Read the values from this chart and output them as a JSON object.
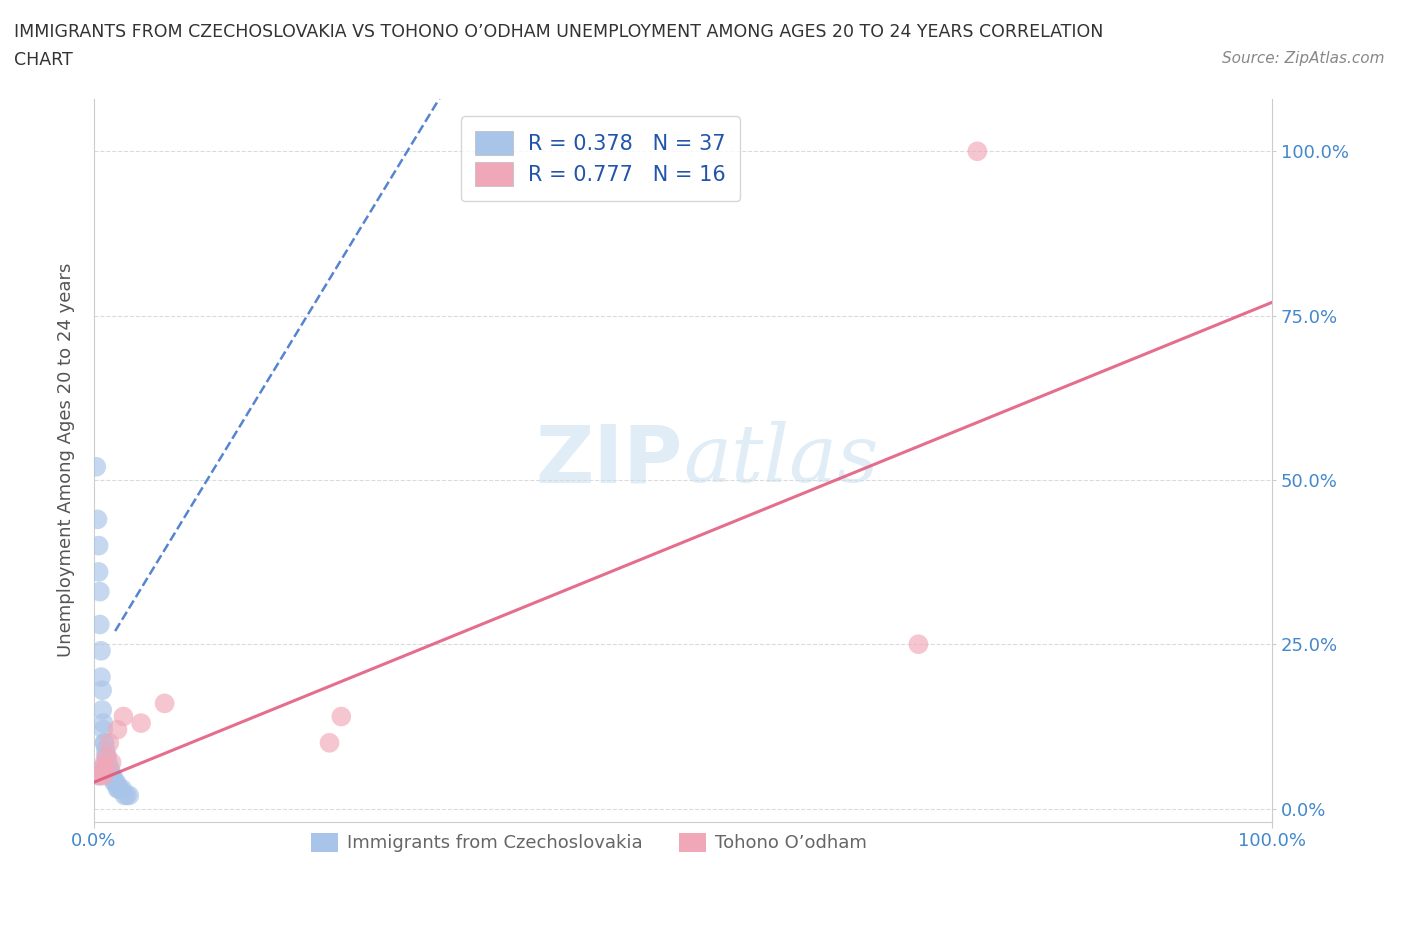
{
  "title_line1": "IMMIGRANTS FROM CZECHOSLOVAKIA VS TOHONO O’ODHAM UNEMPLOYMENT AMONG AGES 20 TO 24 YEARS CORRELATION",
  "title_line2": "CHART",
  "source_text": "Source: ZipAtlas.com",
  "ylabel": "Unemployment Among Ages 20 to 24 years",
  "r_blue": 0.378,
  "n_blue": 37,
  "r_pink": 0.777,
  "n_pink": 16,
  "blue_color": "#a8c4e8",
  "pink_color": "#f0a8b8",
  "blue_line_color": "#4477cc",
  "pink_line_color": "#e05578",
  "blue_x": [
    0.002,
    0.003,
    0.004,
    0.004,
    0.005,
    0.005,
    0.006,
    0.006,
    0.007,
    0.007,
    0.008,
    0.008,
    0.009,
    0.009,
    0.01,
    0.01,
    0.011,
    0.011,
    0.012,
    0.012,
    0.013,
    0.014,
    0.015,
    0.015,
    0.016,
    0.017,
    0.018,
    0.019,
    0.02,
    0.021,
    0.022,
    0.024,
    0.026,
    0.028,
    0.03,
    0.004,
    0.006
  ],
  "blue_y": [
    0.52,
    0.44,
    0.4,
    0.36,
    0.33,
    0.28,
    0.24,
    0.2,
    0.18,
    0.15,
    0.13,
    0.12,
    0.1,
    0.1,
    0.09,
    0.08,
    0.08,
    0.07,
    0.07,
    0.06,
    0.06,
    0.06,
    0.05,
    0.05,
    0.05,
    0.04,
    0.04,
    0.04,
    0.03,
    0.03,
    0.03,
    0.03,
    0.02,
    0.02,
    0.02,
    0.05,
    0.06
  ],
  "pink_x": [
    0.005,
    0.007,
    0.008,
    0.009,
    0.01,
    0.011,
    0.013,
    0.015,
    0.02,
    0.025,
    0.04,
    0.06,
    0.2,
    0.21,
    0.7,
    0.75
  ],
  "pink_y": [
    0.05,
    0.06,
    0.05,
    0.07,
    0.06,
    0.08,
    0.1,
    0.07,
    0.12,
    0.14,
    0.13,
    0.16,
    0.1,
    0.14,
    0.25,
    1.0
  ],
  "blue_trend_x": [
    0.018,
    0.3
  ],
  "blue_trend_y": [
    0.27,
    1.1
  ],
  "pink_trend_x": [
    0.0,
    1.0
  ],
  "pink_trend_y": [
    0.04,
    0.77
  ],
  "watermark_zip": "ZIP",
  "watermark_atlas": "atlas",
  "xlim": [
    0,
    1.0
  ],
  "ylim": [
    -0.02,
    1.08
  ],
  "yticks": [
    0.0,
    0.25,
    0.5,
    0.75,
    1.0
  ],
  "ytick_labels": [
    "0.0%",
    "25.0%",
    "50.0%",
    "75.0%",
    "100.0%"
  ],
  "xtick_labels": [
    "0.0%",
    "100.0%"
  ],
  "background_color": "#ffffff",
  "grid_color": "#cccccc",
  "title_color": "#333333",
  "axis_label_color": "#555555",
  "tick_color": "#4488cc",
  "legend1_label_blue": "R = 0.378   N = 37",
  "legend1_label_pink": "R = 0.777   N = 16",
  "legend2_label_blue": "Immigrants from Czechoslovakia",
  "legend2_label_pink": "Tohono O’odham"
}
